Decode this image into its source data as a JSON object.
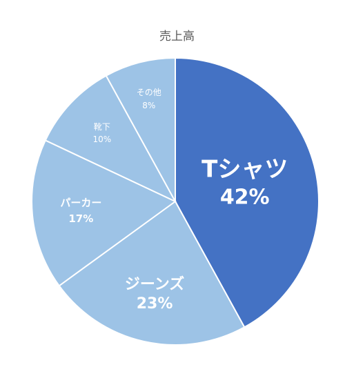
{
  "chart_data": {
    "type": "pie",
    "title": "売上高",
    "slices": [
      {
        "label": "Tシャツ",
        "value": 42,
        "value_label": "42%",
        "color": "#4472C4"
      },
      {
        "label": "ジーンズ",
        "value": 23,
        "value_label": "23%",
        "color": "#9DC3E6"
      },
      {
        "label": "パーカー",
        "value": 17,
        "value_label": "17%",
        "color": "#9DC3E6"
      },
      {
        "label": "靴下",
        "value": 10,
        "value_label": "10%",
        "color": "#9DC3E6"
      },
      {
        "label": "その他",
        "value": 8,
        "value_label": "8%",
        "color": "#9DC3E6"
      }
    ]
  }
}
